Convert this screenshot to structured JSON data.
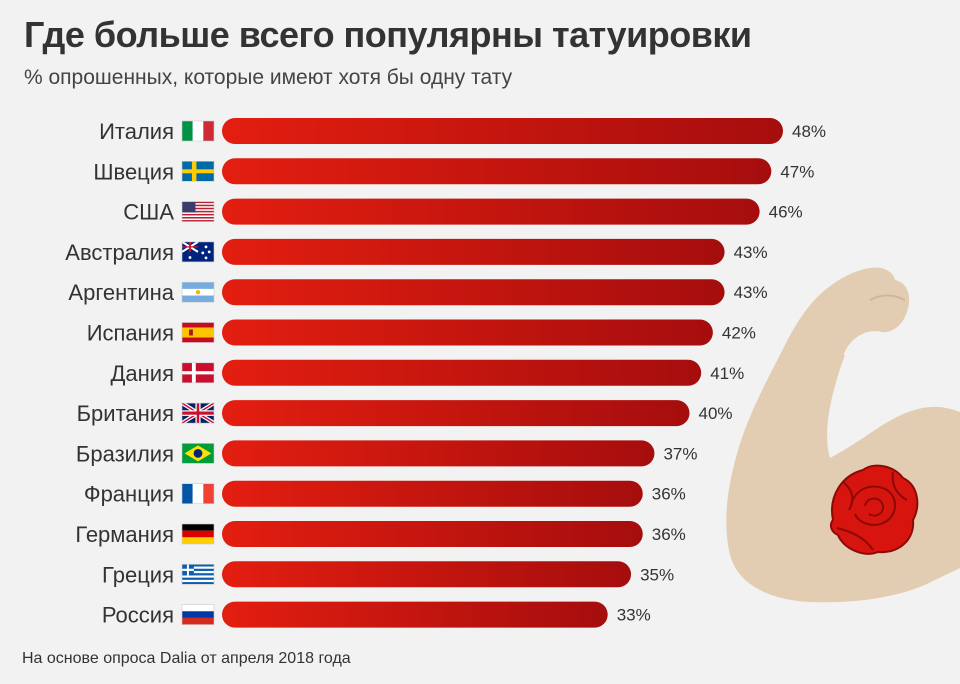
{
  "title": "Где больше всего популярны татуировки",
  "subtitle": "% опрошенных, которые имеют хотя бы одну тату",
  "footnote": "На основе опроса Dalia от апреля 2018 года",
  "colors": {
    "bar_start": "#e31e10",
    "bar_end": "#a50d0d",
    "background": "#f2f2f2",
    "arm": "#e2cdb2",
    "rose": "#d8140f"
  },
  "chart_data": {
    "type": "bar",
    "orientation": "horizontal",
    "categories": [
      "Италия",
      "Швеция",
      "США",
      "Австралия",
      "Аргентина",
      "Испания",
      "Дания",
      "Британия",
      "Бразилия",
      "Франция",
      "Германия",
      "Греция",
      "Россия"
    ],
    "flags": [
      "italy-flag-icon",
      "sweden-flag-icon",
      "usa-flag-icon",
      "australia-flag-icon",
      "argentina-flag-icon",
      "spain-flag-icon",
      "denmark-flag-icon",
      "uk-flag-icon",
      "brazil-flag-icon",
      "france-flag-icon",
      "germany-flag-icon",
      "greece-flag-icon",
      "russia-flag-icon"
    ],
    "values": [
      48,
      47,
      46,
      43,
      43,
      42,
      41,
      40,
      37,
      36,
      36,
      35,
      33
    ],
    "value_labels": [
      "48%",
      "47%",
      "46%",
      "43%",
      "43%",
      "42%",
      "41%",
      "40%",
      "37%",
      "36%",
      "36%",
      "35%",
      "33%"
    ],
    "unit": "%",
    "xlim": [
      0,
      48
    ],
    "grid": false,
    "legend": "none"
  }
}
